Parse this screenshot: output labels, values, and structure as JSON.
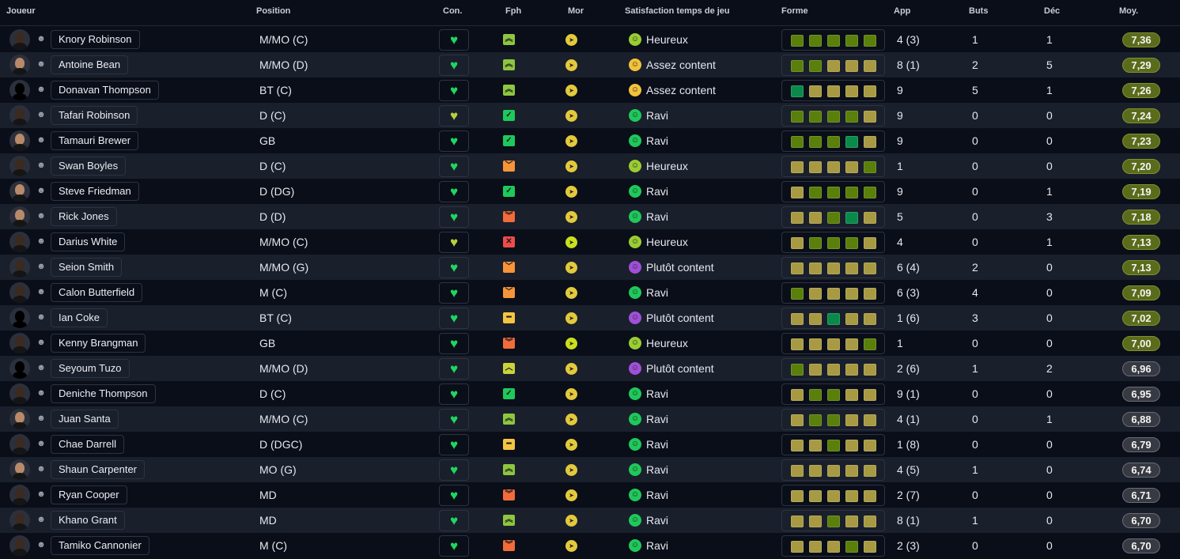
{
  "headers": {
    "player": "Joueur",
    "position": "Position",
    "con": "Con.",
    "fph": "Fph",
    "mor": "Mor",
    "satisfaction": "Satisfaction temps de jeu",
    "forme": "Forme",
    "app": "App",
    "buts": "Buts",
    "dec": "Déc",
    "moy": "Moy."
  },
  "colors": {
    "forme": {
      "g": "#5a7f0a",
      "y": "#a89a42",
      "t": "#0a8a4a"
    },
    "fph": {
      "double-up": "#8dc63f",
      "check": "#1ec95a",
      "down": "#f7943a",
      "double-down": "#f26b3a",
      "x": "#ee4b4b",
      "dash": "#f5c542",
      "up": "#c8d43a"
    },
    "satisfaction": {
      "Heureux": "#9acd32",
      "Assez content": "#f2c23a",
      "Ravi": "#1ec95a",
      "Plutôt content": "#a050d8"
    },
    "moy_good": "#5a6b1b",
    "moy_neutral": "#373a42"
  },
  "players": [
    {
      "name": "Knory Robinson",
      "avatar": "dark",
      "position": "M/MO (C)",
      "con": "green",
      "fph": "double-up",
      "mor": "yellow",
      "satisfaction": "Heureux",
      "forme": "ggggg",
      "app": "4 (3)",
      "buts": "1",
      "dec": "1",
      "moy": "7,36"
    },
    {
      "name": "Antoine Bean",
      "avatar": "light",
      "position": "M/MO (D)",
      "con": "green",
      "fph": "double-up",
      "mor": "yellow",
      "satisfaction": "Assez content",
      "forme": "ggyyy",
      "app": "8 (1)",
      "buts": "2",
      "dec": "5",
      "moy": "7,29"
    },
    {
      "name": "Donavan Thompson",
      "avatar": "sil",
      "position": "BT (C)",
      "con": "green",
      "fph": "double-up",
      "mor": "yellow",
      "satisfaction": "Assez content",
      "forme": "tyyyy",
      "app": "9",
      "buts": "5",
      "dec": "1",
      "moy": "7,26"
    },
    {
      "name": "Tafari Robinson",
      "avatar": "dark",
      "position": "D (C)",
      "con": "yellow",
      "fph": "check",
      "mor": "yellow",
      "satisfaction": "Ravi",
      "forme": "ggggy",
      "app": "9",
      "buts": "0",
      "dec": "0",
      "moy": "7,24"
    },
    {
      "name": "Tamauri Brewer",
      "avatar": "light",
      "position": "GB",
      "con": "green",
      "fph": "check",
      "mor": "yellow",
      "satisfaction": "Ravi",
      "forme": "gggty",
      "app": "9",
      "buts": "0",
      "dec": "0",
      "moy": "7,23"
    },
    {
      "name": "Swan Boyles",
      "avatar": "dark",
      "position": "D (C)",
      "con": "green",
      "fph": "down",
      "mor": "yellow",
      "satisfaction": "Heureux",
      "forme": "yyyyg",
      "app": "1",
      "buts": "0",
      "dec": "0",
      "moy": "7,20"
    },
    {
      "name": "Steve Friedman",
      "avatar": "light",
      "position": "D (DG)",
      "con": "green",
      "fph": "check",
      "mor": "yellow",
      "satisfaction": "Ravi",
      "forme": "ygggg",
      "app": "9",
      "buts": "0",
      "dec": "1",
      "moy": "7,19"
    },
    {
      "name": "Rick Jones",
      "avatar": "light",
      "position": "D (D)",
      "con": "green",
      "fph": "double-down",
      "mor": "yellow",
      "satisfaction": "Ravi",
      "forme": "yygty",
      "app": "5",
      "buts": "0",
      "dec": "3",
      "moy": "7,18"
    },
    {
      "name": "Darius White",
      "avatar": "dark",
      "position": "M/MO (C)",
      "con": "yellow",
      "fph": "x",
      "mor": "lime",
      "satisfaction": "Heureux",
      "forme": "ygggy",
      "app": "4",
      "buts": "0",
      "dec": "1",
      "moy": "7,13"
    },
    {
      "name": "Seion Smith",
      "avatar": "dark",
      "position": "M/MO (G)",
      "con": "green",
      "fph": "down",
      "mor": "yellow",
      "satisfaction": "Plutôt content",
      "forme": "yyyyy",
      "app": "6 (4)",
      "buts": "2",
      "dec": "0",
      "moy": "7,13"
    },
    {
      "name": "Calon Butterfield",
      "avatar": "dark",
      "position": "M (C)",
      "con": "green",
      "fph": "down",
      "mor": "yellow",
      "satisfaction": "Ravi",
      "forme": "gyyyy",
      "app": "6 (3)",
      "buts": "4",
      "dec": "0",
      "moy": "7,09"
    },
    {
      "name": "Ian Coke",
      "avatar": "sil",
      "position": "BT (C)",
      "con": "green",
      "fph": "dash",
      "mor": "yellow",
      "satisfaction": "Plutôt content",
      "forme": "yytyy",
      "app": "1 (6)",
      "buts": "3",
      "dec": "0",
      "moy": "7,02"
    },
    {
      "name": "Kenny Brangman",
      "avatar": "dark",
      "position": "GB",
      "con": "green",
      "fph": "double-down",
      "mor": "lime",
      "satisfaction": "Heureux",
      "forme": "yyyyg",
      "app": "1",
      "buts": "0",
      "dec": "0",
      "moy": "7,00"
    },
    {
      "name": "Seyoum Tuzo",
      "avatar": "sil",
      "position": "M/MO (D)",
      "con": "green",
      "fph": "up",
      "mor": "yellow",
      "satisfaction": "Plutôt content",
      "forme": "gyyyy",
      "app": "2 (6)",
      "buts": "1",
      "dec": "2",
      "moy": "6,96"
    },
    {
      "name": "Deniche Thompson",
      "avatar": "dark",
      "position": "D (C)",
      "con": "green",
      "fph": "check",
      "mor": "yellow",
      "satisfaction": "Ravi",
      "forme": "yggyy",
      "app": "9 (1)",
      "buts": "0",
      "dec": "0",
      "moy": "6,95"
    },
    {
      "name": "Juan Santa",
      "avatar": "light",
      "position": "M/MO (C)",
      "con": "green",
      "fph": "double-up",
      "mor": "yellow",
      "satisfaction": "Ravi",
      "forme": "yggyy",
      "app": "4 (1)",
      "buts": "0",
      "dec": "1",
      "moy": "6,88"
    },
    {
      "name": "Chae Darrell",
      "avatar": "dark",
      "position": "D (DGC)",
      "con": "green",
      "fph": "dash",
      "mor": "yellow",
      "satisfaction": "Ravi",
      "forme": "yygyy",
      "app": "1 (8)",
      "buts": "0",
      "dec": "0",
      "moy": "6,79"
    },
    {
      "name": "Shaun Carpenter",
      "avatar": "light",
      "position": "MO (G)",
      "con": "green",
      "fph": "double-up",
      "mor": "yellow",
      "satisfaction": "Ravi",
      "forme": "yyyyy",
      "app": "4 (5)",
      "buts": "1",
      "dec": "0",
      "moy": "6,74"
    },
    {
      "name": "Ryan Cooper",
      "avatar": "dark",
      "position": "MD",
      "con": "green",
      "fph": "double-down",
      "mor": "yellow",
      "satisfaction": "Ravi",
      "forme": "yyyyy",
      "app": "2 (7)",
      "buts": "0",
      "dec": "0",
      "moy": "6,71"
    },
    {
      "name": "Khano Grant",
      "avatar": "dark",
      "position": "MD",
      "con": "green",
      "fph": "double-up",
      "mor": "yellow",
      "satisfaction": "Ravi",
      "forme": "yygyy",
      "app": "8 (1)",
      "buts": "1",
      "dec": "0",
      "moy": "6,70"
    },
    {
      "name": "Tamiko Cannonier",
      "avatar": "dark",
      "position": "M (C)",
      "con": "green",
      "fph": "double-down",
      "mor": "yellow",
      "satisfaction": "Ravi",
      "forme": "yyygy",
      "app": "2 (3)",
      "buts": "0",
      "dec": "0",
      "moy": "6,70"
    }
  ]
}
